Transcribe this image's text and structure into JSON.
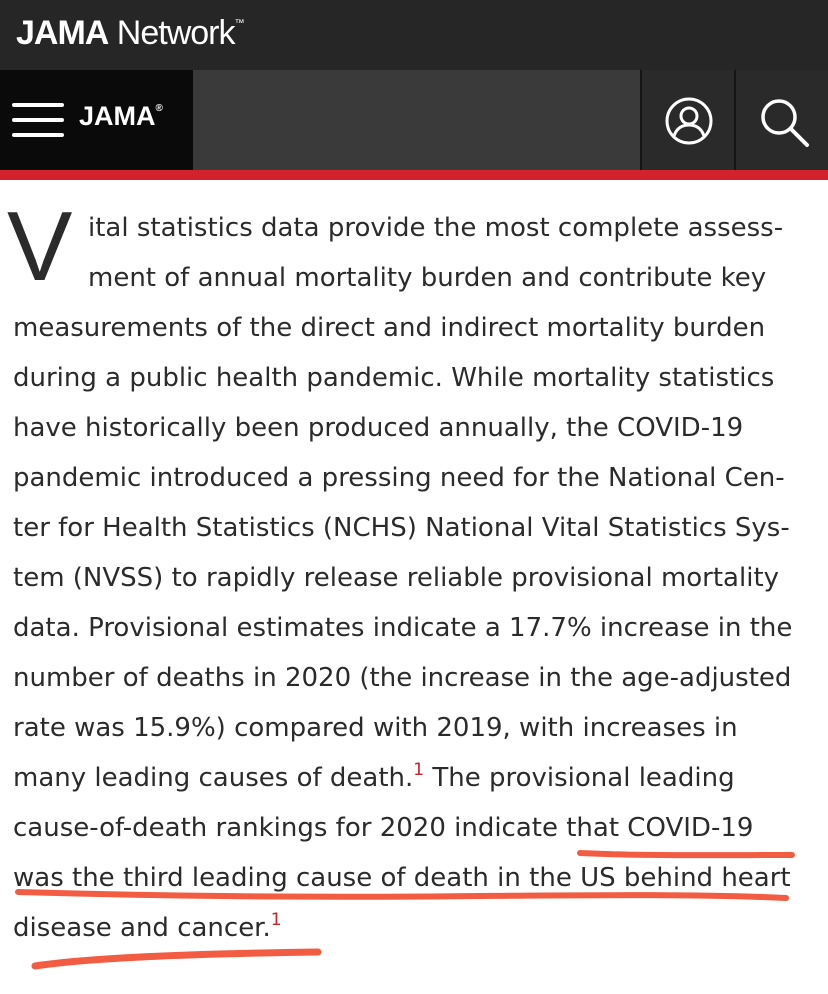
{
  "network_header": {
    "brand_bold": "JAMA",
    "brand_light": " Network",
    "trademark": "™"
  },
  "journal_header": {
    "journal_name": "JAMA",
    "registered_mark": "®",
    "menu_icon": "hamburger-menu-icon",
    "user_icon": "user-account-icon",
    "search_icon": "search-icon"
  },
  "colors": {
    "accent": "#d3222d",
    "annotation": "#f04a2e"
  },
  "article": {
    "dropcap": "V",
    "lines": [
      "ital statistics data provide the most complete assess-",
      "ment of annual mortality burden and contribute key",
      "measurements of the direct and indirect mortality burden",
      "during a public health pandemic. While mortality statistics",
      "have historically been produced annually, the COVID-19",
      "pandemic introduced a pressing need for the National Cen-",
      "ter for Health Statistics (NCHS) National Vital Statistics Sys-",
      "tem (NVSS) to rapidly release reliable provisional mortality",
      "data. Provisional estimates indicate a 17.7% increase in the",
      "number of deaths in 2020 (the increase in the age-adjusted",
      "rate was 15.9%) compared with 2019, with increases in",
      "many leading causes of death.",
      " The provisional leading",
      "cause-of-death rankings for 2020 indicate that COVID-19",
      "was the third leading cause of death in the US behind heart",
      "disease and cancer."
    ],
    "footnote_marker": "1"
  }
}
